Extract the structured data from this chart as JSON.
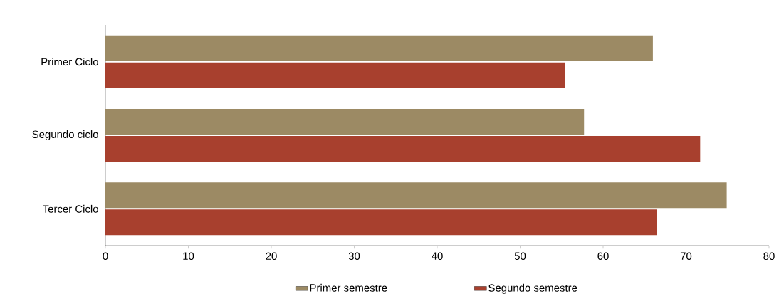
{
  "chart_data": {
    "type": "bar",
    "orientation": "horizontal",
    "categories": [
      "Primer Ciclo",
      "Segundo ciclo",
      "Tercer Ciclo"
    ],
    "series": [
      {
        "name": "Primer semestre",
        "color": "#9c8a64",
        "values": [
          66,
          57.7,
          74.9
        ]
      },
      {
        "name": "Segundo semestre",
        "color": "#a8402e",
        "values": [
          55.4,
          71.7,
          66.5
        ]
      }
    ],
    "xlim": [
      0,
      80
    ],
    "xticks": [
      0,
      10,
      20,
      30,
      40,
      50,
      60,
      70,
      80
    ],
    "legend": "bottom"
  }
}
